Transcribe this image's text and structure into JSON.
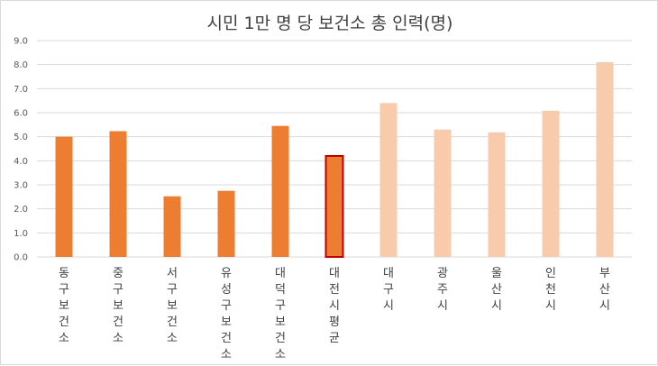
{
  "chart_data": {
    "type": "bar",
    "title": "시민 1만 명 당 보건소 총 인력(명)",
    "categories": [
      "동구보건소",
      "중구보건소",
      "서구보건소",
      "유성구보건소",
      "대덕구보건소",
      "대전시평균",
      "대구시",
      "광주시",
      "울산시",
      "인천시",
      "부산시"
    ],
    "values": [
      5.0,
      5.23,
      2.52,
      2.75,
      5.45,
      4.2,
      6.4,
      5.3,
      5.18,
      6.08,
      8.1
    ],
    "ylim": [
      0,
      9
    ],
    "yticks": [
      "0.0",
      "1.0",
      "2.0",
      "3.0",
      "4.0",
      "5.0",
      "6.0",
      "7.0",
      "8.0",
      "9.0"
    ],
    "highlighted_category": "대전시평균",
    "colors": {
      "daejeon": "#ed7d31",
      "other_cities": "#f8cbad",
      "highlight_border": "#c00000",
      "gridline": "#d9d9d9",
      "axis": "#d9d9d9"
    },
    "bar_groups": [
      "daejeon",
      "daejeon",
      "daejeon",
      "daejeon",
      "daejeon",
      "daejeon",
      "other_cities",
      "other_cities",
      "other_cities",
      "other_cities",
      "other_cities"
    ],
    "grid": true,
    "legend": "none"
  }
}
